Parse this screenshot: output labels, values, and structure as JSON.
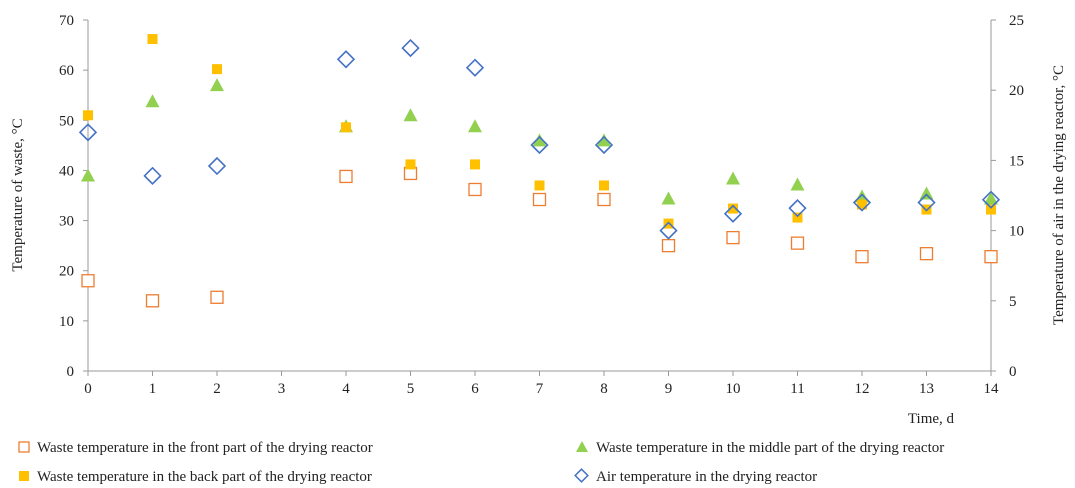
{
  "chart_data": {
    "type": "scatter",
    "xlabel": "Time, d",
    "ylabel": "Temperature of waste, °C",
    "y2label": "Temperature of air in the drying reactor, °C",
    "xlim": [
      0,
      14
    ],
    "ylim": [
      0,
      70
    ],
    "y2lim": [
      0,
      25
    ],
    "xticks": [
      0,
      1,
      2,
      3,
      4,
      5,
      6,
      7,
      8,
      9,
      10,
      11,
      12,
      13,
      14
    ],
    "yticks": [
      0,
      10,
      20,
      30,
      40,
      50,
      60,
      70
    ],
    "y2ticks": [
      0,
      5,
      10,
      15,
      20,
      25
    ],
    "grid": false,
    "legend_position": "bottom",
    "series": [
      {
        "name": "Waste temperature in the front part of the drying reactor",
        "axis": "left",
        "marker": "open-square",
        "color": "#ED7D31",
        "x": [
          0,
          1,
          2,
          4,
          5,
          6,
          7,
          8,
          9,
          10,
          11,
          12,
          13,
          14
        ],
        "y": [
          18,
          14,
          14.7,
          38.8,
          39.4,
          36.2,
          34.2,
          34.2,
          25,
          26.6,
          25.5,
          22.8,
          23.4,
          22.8
        ]
      },
      {
        "name": "Waste temperature in the middle part of the drying reactor",
        "axis": "left",
        "marker": "filled-triangle",
        "color": "#92D050",
        "x": [
          0,
          1,
          2,
          4,
          5,
          6,
          7,
          8,
          9,
          10,
          11,
          12,
          13,
          14
        ],
        "y": [
          39,
          53.8,
          57,
          48.8,
          51,
          48.8,
          46,
          46,
          34.4,
          38.4,
          37.2,
          34.8,
          35.4,
          34.4
        ]
      },
      {
        "name": "Waste temperature in the back part of the drying reactor",
        "axis": "left",
        "marker": "filled-square",
        "color": "#FFC000",
        "x": [
          0,
          1,
          2,
          4,
          5,
          6,
          7,
          8,
          9,
          10,
          11,
          12,
          13,
          14
        ],
        "y": [
          51,
          66.2,
          60.2,
          48.6,
          41.2,
          41.2,
          37,
          37,
          29.4,
          32.4,
          30.6,
          33.2,
          32.2,
          32.2
        ]
      },
      {
        "name": "Air temperature in the drying reactor",
        "axis": "right",
        "marker": "open-diamond",
        "color": "#4472C4",
        "x": [
          0,
          1,
          2,
          4,
          5,
          6,
          7,
          8,
          9,
          10,
          11,
          12,
          13,
          14
        ],
        "y": [
          17,
          13.9,
          14.6,
          22.2,
          23,
          21.6,
          16.1,
          16.1,
          10,
          11.2,
          11.6,
          12,
          12,
          12.2
        ]
      }
    ]
  }
}
